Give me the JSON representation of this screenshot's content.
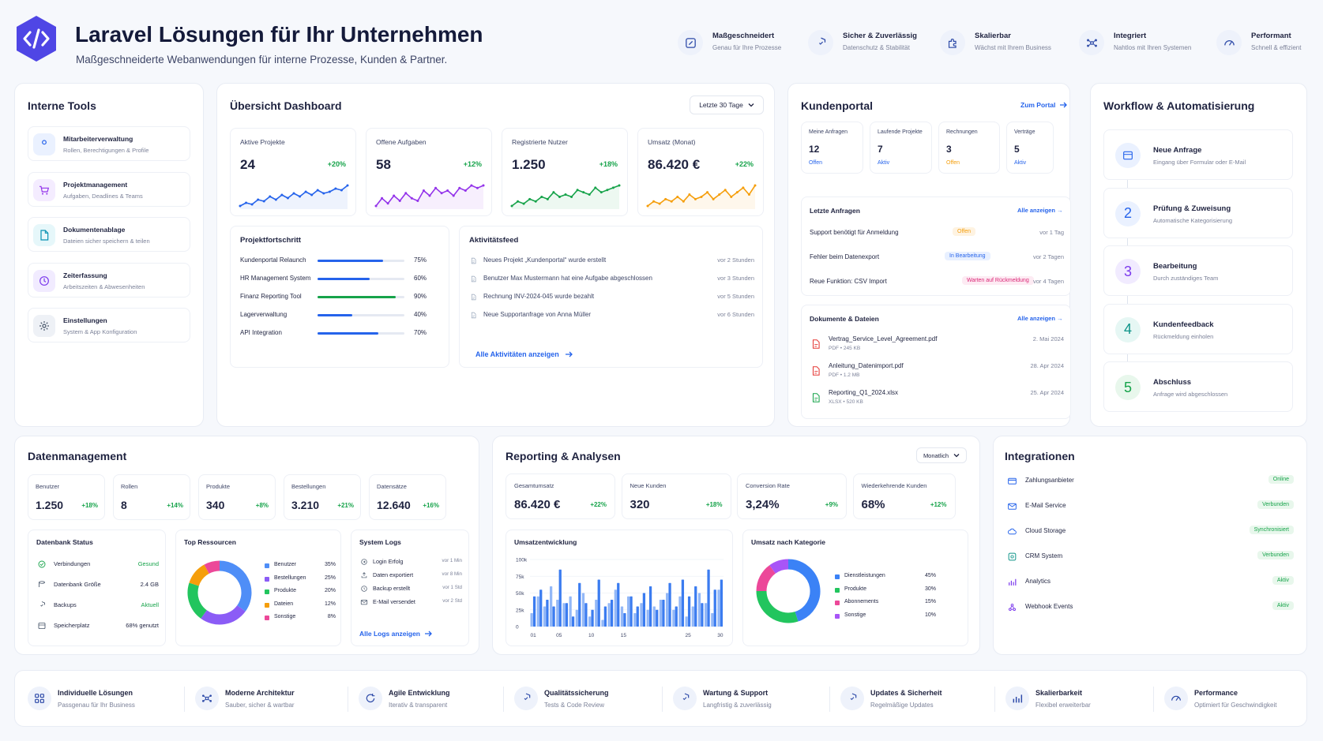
{
  "header": {
    "title": "Laravel Lösungen für Ihr Unternehmen",
    "subtitle": "Maßgeschneiderte Webanwendungen für interne Prozesse, Kunden & Partner.",
    "features": [
      {
        "title": "Maßgeschneidert",
        "sub": "Genau für Ihre Prozesse",
        "icon": "edit-icon"
      },
      {
        "title": "Sicher & Zuverlässig",
        "sub": "Datenschutz & Stabilität",
        "icon": "shield-icon"
      },
      {
        "title": "Skalierbar",
        "sub": "Wächst mit Ihrem Business",
        "icon": "puzzle-icon"
      },
      {
        "title": "Integriert",
        "sub": "Nahtlos mit Ihren Systemen",
        "icon": "nodes-icon"
      },
      {
        "title": "Performant",
        "sub": "Schnell & effizient",
        "icon": "gauge-icon"
      }
    ]
  },
  "tools": {
    "title": "Interne Tools",
    "items": [
      {
        "title": "Mitarbeiterverwaltung",
        "sub": "Rollen, Berechtigungen & Profile",
        "icon": "user-icon",
        "color": "#2563eb",
        "bg": "#eaf1ff"
      },
      {
        "title": "Projektmanagement",
        "sub": "Aufgaben, Deadlines & Teams",
        "icon": "cart-icon",
        "color": "#9333ea",
        "bg": "#f4ecff"
      },
      {
        "title": "Dokumentenablage",
        "sub": "Dateien sicher speichern & teilen",
        "icon": "file-icon",
        "color": "#0891b2",
        "bg": "#e6f7fa"
      },
      {
        "title": "Zeiterfassung",
        "sub": "Arbeitszeiten & Abwesenheiten",
        "icon": "clock-icon",
        "color": "#7c3aed",
        "bg": "#f1ebff"
      },
      {
        "title": "Einstellungen",
        "sub": "System & App Konfiguration",
        "icon": "gear-icon",
        "color": "#475569",
        "bg": "#eef1f6"
      }
    ]
  },
  "dashboard": {
    "title": "Übersicht Dashboard",
    "range": "Letzte 30 Tage",
    "kpis": [
      {
        "label": "Aktive Projekte",
        "value": "24",
        "delta": "+20%",
        "color": "#2563eb",
        "spark": [
          5,
          7,
          6,
          9,
          8,
          11,
          9,
          12,
          10,
          13,
          11,
          14,
          12,
          15,
          13,
          14,
          16,
          15,
          18
        ]
      },
      {
        "label": "Offene Aufgaben",
        "value": "58",
        "delta": "+12%",
        "color": "#9333ea",
        "spark": [
          6,
          9,
          7,
          10,
          8,
          11,
          9,
          8,
          12,
          10,
          13,
          11,
          12,
          10,
          13,
          12,
          14,
          13,
          14
        ]
      },
      {
        "label": "Registrierte Nutzer",
        "value": "1.250",
        "delta": "+18%",
        "color": "#16a34a",
        "spark": [
          6,
          8,
          7,
          9,
          8,
          10,
          9,
          12,
          10,
          11,
          10,
          13,
          12,
          11,
          14,
          12,
          13,
          14,
          15
        ]
      },
      {
        "label": "Umsatz (Monat)",
        "value": "86.420 €",
        "delta": "+22%",
        "color": "#f59e0b",
        "spark": [
          7,
          9,
          8,
          10,
          9,
          11,
          9,
          12,
          10,
          11,
          13,
          10,
          12,
          14,
          11,
          13,
          15,
          12,
          16
        ]
      }
    ],
    "progress": {
      "title": "Projektfortschritt",
      "items": [
        {
          "name": "Kundenportal Relaunch",
          "pct": "75%",
          "value": 75,
          "color": "#2563eb"
        },
        {
          "name": "HR Management System",
          "pct": "60%",
          "value": 60,
          "color": "#2563eb"
        },
        {
          "name": "Finanz Reporting Tool",
          "pct": "90%",
          "value": 90,
          "color": "#16a34a"
        },
        {
          "name": "Lagerverwaltung",
          "pct": "40%",
          "value": 40,
          "color": "#2563eb"
        },
        {
          "name": "API Integration",
          "pct": "70%",
          "value": 70,
          "color": "#2563eb"
        }
      ]
    },
    "activity": {
      "title": "Aktivitätsfeed",
      "items": [
        {
          "text": "Neues Projekt „Kundenportal“ wurde erstellt",
          "time": "vor 2 Stunden"
        },
        {
          "text": "Benutzer Max Mustermann hat eine Aufgabe abgeschlossen",
          "time": "vor 3 Stunden"
        },
        {
          "text": "Rechnung INV-2024-045 wurde bezahlt",
          "time": "vor 5 Stunden"
        },
        {
          "text": "Neue Supportanfrage von Anna Müller",
          "time": "vor 6 Stunden"
        }
      ],
      "link": "Alle Aktivitäten anzeigen"
    }
  },
  "portal": {
    "title": "Kundenportal",
    "link": "Zum Portal",
    "stats": [
      {
        "label": "Meine Anfragen",
        "value": "12",
        "status": "Offen",
        "color": "#2563eb"
      },
      {
        "label": "Laufende Projekte",
        "value": "7",
        "status": "Aktiv",
        "color": "#2563eb"
      },
      {
        "label": "Rechnungen",
        "value": "3",
        "status": "Offen",
        "color": "#f59e0b"
      },
      {
        "label": "Verträge",
        "value": "5",
        "status": "Aktiv",
        "color": "#2563eb"
      }
    ],
    "requests": {
      "title": "Letzte Anfragen",
      "link": "Alle anzeigen",
      "items": [
        {
          "text": "Support benötigt für Anmeldung",
          "badge": "Offen",
          "badgeColor": "#f59e0b",
          "badgeBg": "#fef3e2",
          "time": "vor 1 Tag"
        },
        {
          "text": "Fehler beim Datenexport",
          "badge": "In Bearbeitung",
          "badgeColor": "#2563eb",
          "badgeBg": "#e8f0ff",
          "time": "vor 2 Tagen"
        },
        {
          "text": "Reue Funktion: CSV Import",
          "badge": "Warten auf Rückmeldung",
          "badgeColor": "#db2777",
          "badgeBg": "#fdebf3",
          "time": "vor 4 Tagen"
        }
      ]
    },
    "docs": {
      "title": "Dokumente & Dateien",
      "link": "Alle anzeigen",
      "items": [
        {
          "name": "Vertrag_Service_Level_Agreement.pdf",
          "meta": "PDF • 245 KB",
          "date": "2. Mai 2024",
          "color": "#e53935"
        },
        {
          "name": "Anleitung_Datenimport.pdf",
          "meta": "PDF • 1.2 MB",
          "date": "28. Apr 2024",
          "color": "#e53935"
        },
        {
          "name": "Reporting_Q1_2024.xlsx",
          "meta": "XLSX • 520 KB",
          "date": "25. Apr 2024",
          "color": "#16a34a"
        }
      ]
    }
  },
  "workflow": {
    "title": "Workflow & Automatisierung",
    "steps": [
      {
        "num": "",
        "title": "Neue Anfrage",
        "sub": "Eingang über Formular oder E-Mail",
        "color": "#2563eb",
        "bg": "#eaf1ff"
      },
      {
        "num": "2",
        "title": "Prüfung & Zuweisung",
        "sub": "Automatische Kategorisierung",
        "color": "#2563eb",
        "bg": "#eaf1ff"
      },
      {
        "num": "3",
        "title": "Bearbeitung",
        "sub": "Durch zuständiges Team",
        "color": "#7c3aed",
        "bg": "#f1ebff"
      },
      {
        "num": "4",
        "title": "Kundenfeedback",
        "sub": "Rückmeldung einholen",
        "color": "#0d9488",
        "bg": "#e6f7f4"
      },
      {
        "num": "5",
        "title": "Abschluss",
        "sub": "Anfrage wird abgeschlossen",
        "color": "#16a34a",
        "bg": "#e8f7ec"
      }
    ]
  },
  "data": {
    "title": "Datenmanagement",
    "stats": [
      {
        "label": "Benutzer",
        "value": "1.250",
        "delta": "+18%"
      },
      {
        "label": "Rollen",
        "value": "8",
        "delta": "+14%"
      },
      {
        "label": "Produkte",
        "value": "340",
        "delta": "+8%"
      },
      {
        "label": "Bestellungen",
        "value": "3.210",
        "delta": "+21%"
      },
      {
        "label": "Datensätze",
        "value": "12.640",
        "delta": "+16%"
      }
    ],
    "db": {
      "title": "Datenbank Status",
      "items": [
        {
          "label": "Verbindungen",
          "value": "Gesund",
          "icon": "check-circle-icon",
          "valueColor": "#16a34a",
          "iconColor": "#16a34a"
        },
        {
          "label": "Datenbank Größe",
          "value": "2.4 GB",
          "icon": "database-icon",
          "valueColor": "#1f2340",
          "iconColor": "#475569"
        },
        {
          "label": "Backups",
          "value": "Aktuell",
          "icon": "shield-icon",
          "valueColor": "#16a34a",
          "iconColor": "#475569"
        },
        {
          "label": "Speicherplatz",
          "value": "68% genutzt",
          "icon": "storage-icon",
          "valueColor": "#1f2340",
          "iconColor": "#475569"
        }
      ]
    },
    "resources": {
      "title": "Top Ressourcen",
      "items": [
        {
          "name": "Benutzer",
          "pct": "35%",
          "value": 35,
          "color": "#4f8ef7"
        },
        {
          "name": "Bestellungen",
          "pct": "25%",
          "value": 25,
          "color": "#8b5cf6"
        },
        {
          "name": "Produkte",
          "pct": "20%",
          "value": 20,
          "color": "#22c55e"
        },
        {
          "name": "Dateien",
          "pct": "12%",
          "value": 12,
          "color": "#f59e0b"
        },
        {
          "name": "Sonstige",
          "pct": "8%",
          "value": 8,
          "color": "#ec4899"
        }
      ]
    },
    "logs": {
      "title": "System Logs",
      "items": [
        {
          "text": "Login Erfolg",
          "time": "vor 1 Min",
          "icon": "login-icon"
        },
        {
          "text": "Daten exportiert",
          "time": "vor 8 Min",
          "icon": "export-icon"
        },
        {
          "text": "Backup erstellt",
          "time": "vor 1 Std",
          "icon": "backup-icon"
        },
        {
          "text": "E-Mail versendet",
          "time": "vor 2 Std",
          "icon": "mail-icon"
        }
      ],
      "link": "Alle Logs anzeigen"
    }
  },
  "reporting": {
    "title": "Reporting & Analysen",
    "range": "Monatlich",
    "kpis": [
      {
        "label": "Gesamtumsatz",
        "value": "86.420 €",
        "delta": "+22%"
      },
      {
        "label": "Neue Kunden",
        "value": "320",
        "delta": "+18%"
      },
      {
        "label": "Conversion Rate",
        "value": "3,24%",
        "delta": "+9%"
      },
      {
        "label": "Wiederkehrende Kunden",
        "value": "68%",
        "delta": "+12%"
      }
    ],
    "revenueTitle": "Umsatzentwicklung",
    "categoryTitle": "Umsatz nach Kategorie",
    "categories": [
      {
        "name": "Dienstleistungen",
        "pct": "45%",
        "value": 45,
        "color": "#3b82f6"
      },
      {
        "name": "Produkte",
        "pct": "30%",
        "value": 30,
        "color": "#22c55e"
      },
      {
        "name": "Abonnements",
        "pct": "15%",
        "value": 15,
        "color": "#ec4899"
      },
      {
        "name": "Sonstige",
        "pct": "10%",
        "value": 10,
        "color": "#a855f7"
      }
    ]
  },
  "chart_data": {
    "type": "bar",
    "title": "Umsatzentwicklung",
    "x": [
      1,
      2,
      3,
      4,
      5,
      6,
      7,
      8,
      9,
      10,
      11,
      12,
      13,
      14,
      15,
      16,
      17,
      18,
      19,
      20,
      21,
      22,
      23,
      24,
      25,
      26,
      27,
      28,
      29,
      30
    ],
    "tick_labels": [
      "01",
      "05",
      "10",
      "15",
      "25",
      "30"
    ],
    "tick_positions": [
      1,
      5,
      10,
      15,
      25,
      30
    ],
    "y_ticks": [
      "100k",
      "75k",
      "50k",
      "25k",
      "0"
    ],
    "ylim": [
      0,
      100000
    ],
    "series": [
      {
        "values": [
          20000,
          45000,
          30000,
          60000,
          40000,
          35000,
          45000,
          25000,
          50000,
          15000,
          40000,
          10000,
          35000,
          55000,
          30000,
          45000,
          20000,
          35000,
          25000,
          30000,
          40000,
          50000,
          25000,
          45000,
          15000,
          30000,
          50000,
          35000,
          20000,
          55000
        ]
      },
      {
        "values": [
          45000,
          55000,
          40000,
          30000,
          85000,
          35000,
          15000,
          65000,
          35000,
          25000,
          70000,
          30000,
          40000,
          65000,
          20000,
          45000,
          30000,
          50000,
          60000,
          25000,
          40000,
          65000,
          30000,
          70000,
          45000,
          60000,
          35000,
          85000,
          55000,
          70000
        ]
      }
    ]
  },
  "integrations": {
    "title": "Integrationen",
    "items": [
      {
        "name": "Zahlungsanbieter",
        "status": "Online",
        "icon": "card-icon",
        "color": "#2563eb"
      },
      {
        "name": "E-Mail Service",
        "status": "Verbunden",
        "icon": "mail-icon",
        "color": "#2563eb"
      },
      {
        "name": "Cloud Storage",
        "status": "Synchronisiert",
        "icon": "cloud-icon",
        "color": "#2563eb"
      },
      {
        "name": "CRM System",
        "status": "Verbunden",
        "icon": "crm-icon",
        "color": "#0d9488"
      },
      {
        "name": "Analytics",
        "status": "Aktiv",
        "icon": "analytics-icon",
        "color": "#7c3aed"
      },
      {
        "name": "Webhook Events",
        "status": "Aktiv",
        "icon": "webhook-icon",
        "color": "#7c3aed"
      }
    ]
  },
  "footer": {
    "items": [
      {
        "title": "Individuelle Lösungen",
        "sub": "Passgenau für Ihr Business",
        "icon": "grid-icon"
      },
      {
        "title": "Moderne Architektur",
        "sub": "Sauber, sicher & wartbar",
        "icon": "nodes-icon"
      },
      {
        "title": "Agile Entwicklung",
        "sub": "Iterativ & transparent",
        "icon": "refresh-icon"
      },
      {
        "title": "Qualitätssicherung",
        "sub": "Tests & Code Review",
        "icon": "shield-icon"
      },
      {
        "title": "Wartung & Support",
        "sub": "Langfristig & zuverlässig",
        "icon": "shield-icon"
      },
      {
        "title": "Updates & Sicherheit",
        "sub": "Regelmäßige Updates",
        "icon": "shield-icon"
      },
      {
        "title": "Skalierbarkeit",
        "sub": "Flexibel erweiterbar",
        "icon": "analytics-icon"
      },
      {
        "title": "Performance",
        "sub": "Optimiert für Geschwindigkeit",
        "icon": "gauge-icon"
      }
    ]
  },
  "colors": {
    "accent": "#2563eb",
    "success": "#16a34a",
    "logo": "#4f46e5"
  }
}
